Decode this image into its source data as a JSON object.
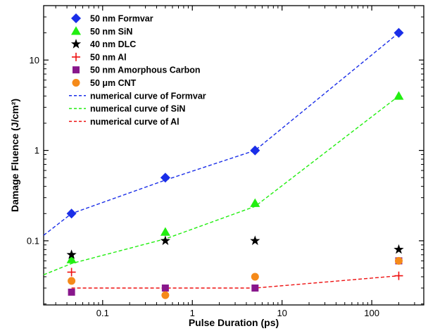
{
  "chart_data": {
    "type": "scatter",
    "xlabel": "Pulse Duration (ps)",
    "ylabel": "Damage Fluence (J/cm²)",
    "xscale": "log",
    "yscale": "log",
    "xlim": [
      0.022,
      380
    ],
    "ylim": [
      0.0195,
      40
    ],
    "x_ticks": [
      0.1,
      1,
      10,
      100
    ],
    "x_tick_labels": [
      "0.1",
      "1",
      "10",
      "100"
    ],
    "y_ticks": [
      0.1,
      1,
      10
    ],
    "y_tick_labels": [
      "0.1",
      "1",
      "10"
    ],
    "grid": false,
    "legend_position": "top-left",
    "series": [
      {
        "name": "50 nm Formvar",
        "marker": "diamond",
        "color": "#1a2ee8",
        "points": [
          {
            "x": 0.045,
            "y": 0.2
          },
          {
            "x": 0.5,
            "y": 0.5
          },
          {
            "x": 5,
            "y": 1.0
          },
          {
            "x": 200,
            "y": 20
          }
        ]
      },
      {
        "name": "50 nm SiN",
        "marker": "triangle",
        "color": "#22ee11",
        "points": [
          {
            "x": 0.045,
            "y": 0.062
          },
          {
            "x": 0.5,
            "y": 0.125
          },
          {
            "x": 5,
            "y": 0.26
          },
          {
            "x": 200,
            "y": 4.0
          }
        ]
      },
      {
        "name": "40 nm DLC",
        "marker": "star",
        "color": "#000000",
        "points": [
          {
            "x": 0.045,
            "y": 0.07
          },
          {
            "x": 0.5,
            "y": 0.1
          },
          {
            "x": 5,
            "y": 0.1
          },
          {
            "x": 200,
            "y": 0.08
          }
        ]
      },
      {
        "name": "50 nm Al",
        "marker": "plus",
        "color": "#ee1111",
        "points": [
          {
            "x": 0.045,
            "y": 0.045
          },
          {
            "x": 200,
            "y": 0.041
          }
        ]
      },
      {
        "name": "50 nm Amorphous Carbon",
        "marker": "square",
        "color": "#88178c",
        "points": [
          {
            "x": 0.045,
            "y": 0.027
          },
          {
            "x": 0.5,
            "y": 0.03
          },
          {
            "x": 5,
            "y": 0.03
          },
          {
            "x": 200,
            "y": 0.06
          }
        ]
      },
      {
        "name": "50 μm CNT",
        "marker": "circle",
        "color": "#f58a1a",
        "points": [
          {
            "x": 0.045,
            "y": 0.036
          },
          {
            "x": 0.5,
            "y": 0.025
          },
          {
            "x": 5,
            "y": 0.04
          },
          {
            "x": 200,
            "y": 0.06
          }
        ]
      }
    ],
    "curves": [
      {
        "name": "numerical curve of Formvar",
        "style": "dashed",
        "color": "#1a2ee8",
        "points": [
          {
            "x": 0.022,
            "y": 0.115
          },
          {
            "x": 0.045,
            "y": 0.2
          },
          {
            "x": 0.5,
            "y": 0.47
          },
          {
            "x": 5,
            "y": 1.0
          },
          {
            "x": 200,
            "y": 20
          }
        ]
      },
      {
        "name": "numerical curve of SiN",
        "style": "dashed",
        "color": "#22ee11",
        "points": [
          {
            "x": 0.022,
            "y": 0.042
          },
          {
            "x": 0.045,
            "y": 0.056
          },
          {
            "x": 0.5,
            "y": 0.105
          },
          {
            "x": 5,
            "y": 0.24
          },
          {
            "x": 200,
            "y": 4.0
          }
        ]
      },
      {
        "name": "numerical curve of Al",
        "style": "dashed",
        "color": "#ee1111",
        "points": [
          {
            "x": 0.045,
            "y": 0.03
          },
          {
            "x": 0.5,
            "y": 0.03
          },
          {
            "x": 5,
            "y": 0.03
          },
          {
            "x": 200,
            "y": 0.041
          }
        ]
      }
    ]
  }
}
